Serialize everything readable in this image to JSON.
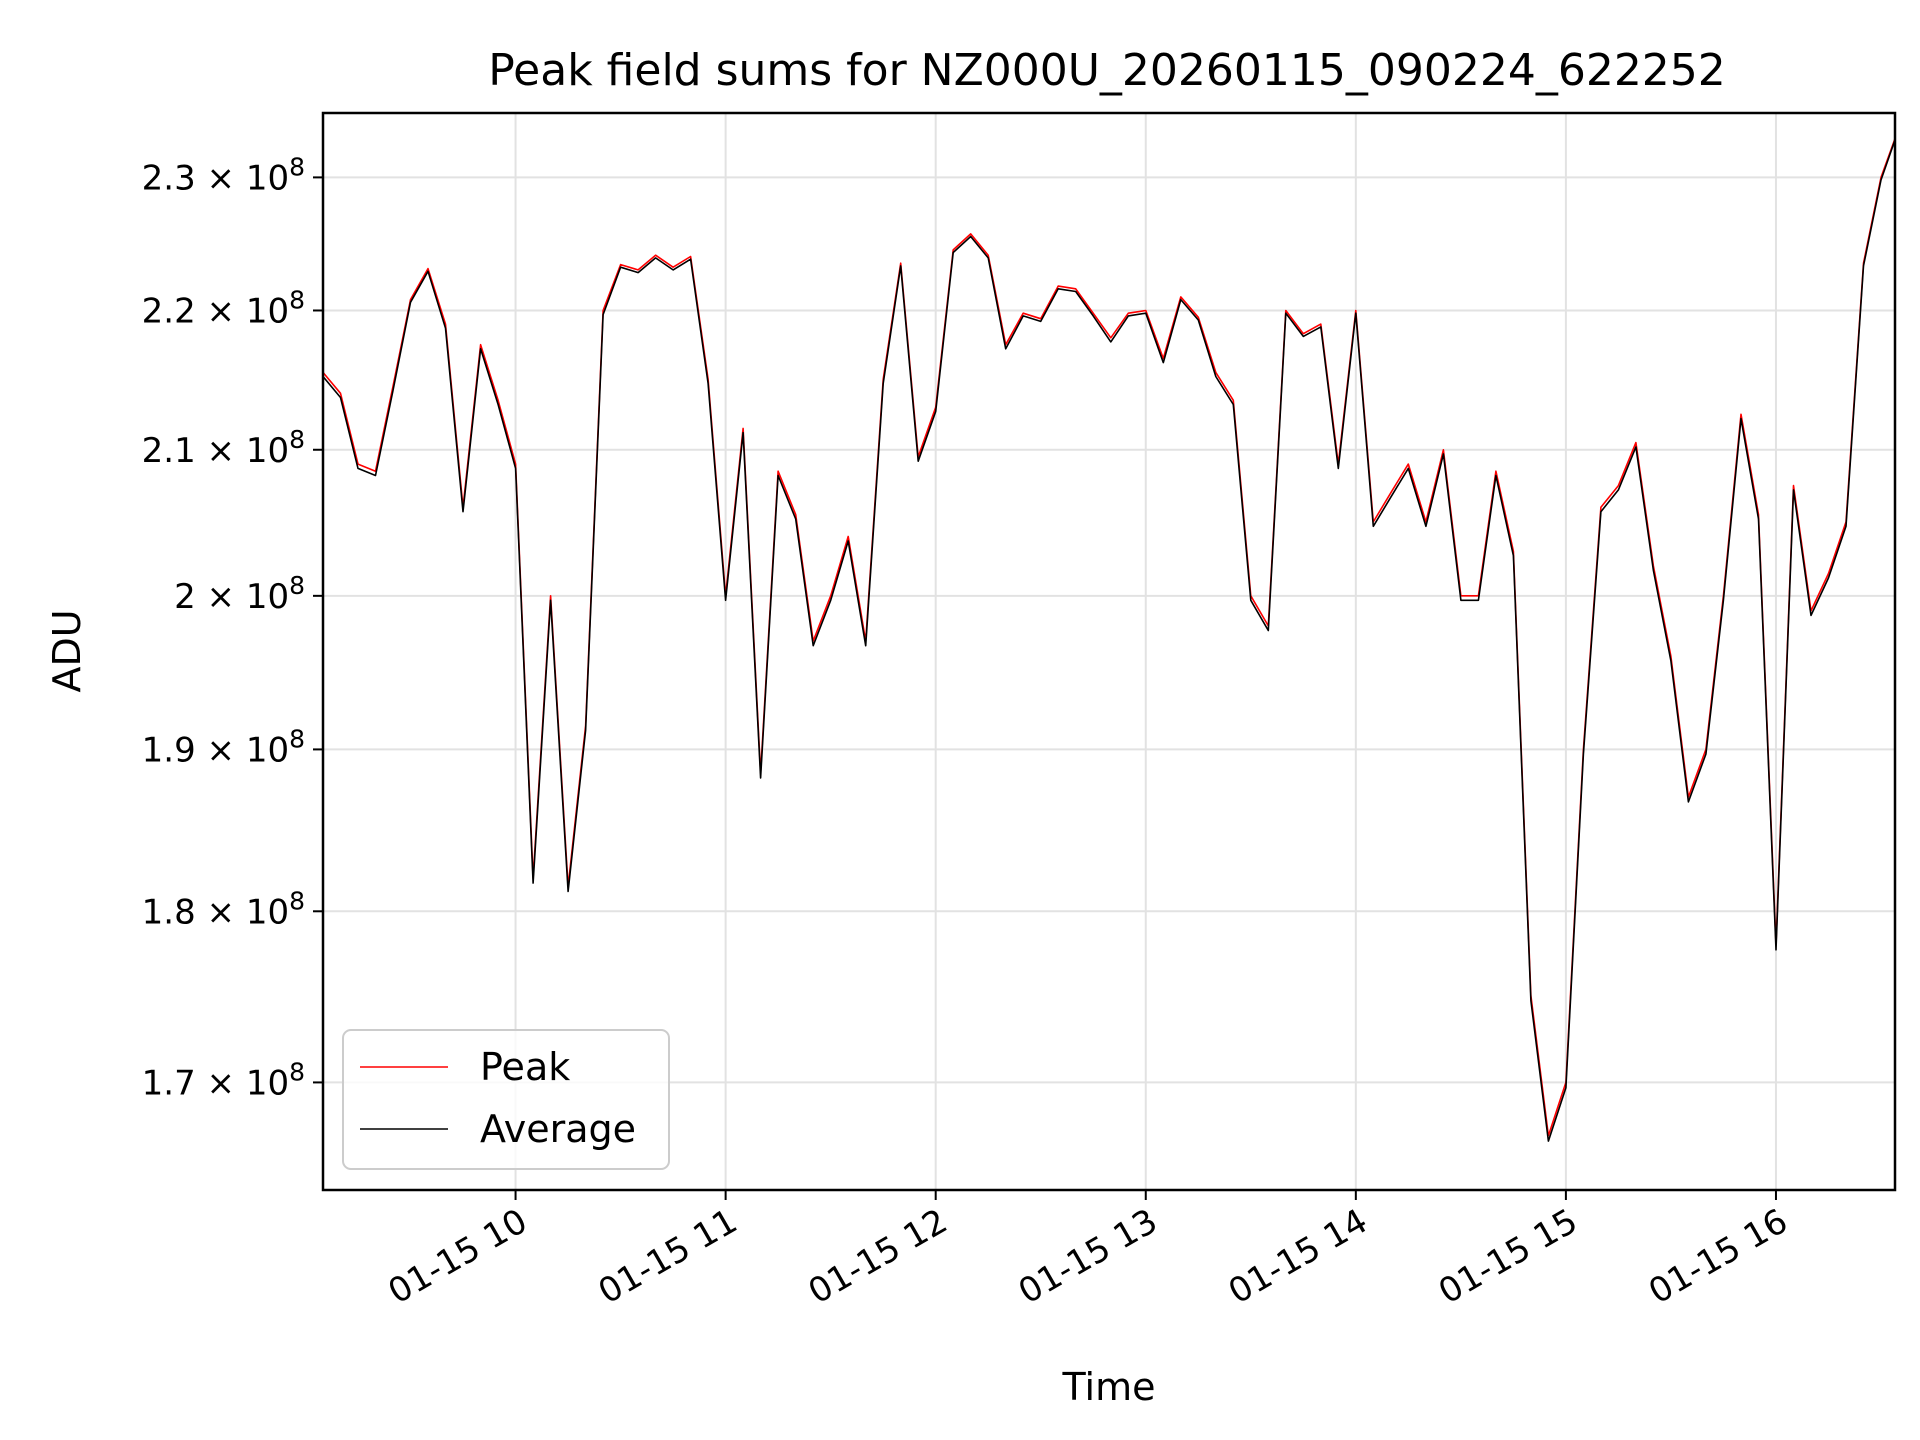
{
  "chart_data": {
    "type": "line",
    "title": "Peak field sums for NZ000U_20260115_090224_622252",
    "xlabel": "Time",
    "ylabel": "ADU",
    "x_range": [
      "2026-01-15 09:05",
      "2026-01-15 16:34"
    ],
    "ylim": [
      164000000,
      235000000
    ],
    "y_scale": "log",
    "grid": true,
    "legend_position": "lower-left",
    "x_ticks": [
      {
        "value": "2026-01-15 10:00",
        "label": "01-15 10"
      },
      {
        "value": "2026-01-15 11:00",
        "label": "01-15 11"
      },
      {
        "value": "2026-01-15 12:00",
        "label": "01-15 12"
      },
      {
        "value": "2026-01-15 13:00",
        "label": "01-15 13"
      },
      {
        "value": "2026-01-15 14:00",
        "label": "01-15 14"
      },
      {
        "value": "2026-01-15 15:00",
        "label": "01-15 15"
      },
      {
        "value": "2026-01-15 16:00",
        "label": "01-15 16"
      }
    ],
    "y_ticks": [
      {
        "value": 170000000,
        "mantissa": "1.7",
        "exponent": "8"
      },
      {
        "value": 180000000,
        "mantissa": "1.8",
        "exponent": "8"
      },
      {
        "value": 190000000,
        "mantissa": "1.9",
        "exponent": "8"
      },
      {
        "value": 200000000,
        "mantissa": "2",
        "exponent": "8"
      },
      {
        "value": 210000000,
        "mantissa": "2.1",
        "exponent": "8"
      },
      {
        "value": 220000000,
        "mantissa": "2.2",
        "exponent": "8"
      },
      {
        "value": 230000000,
        "mantissa": "2.3",
        "exponent": "8"
      }
    ],
    "times": [
      "09:05",
      "09:10",
      "09:15",
      "09:20",
      "09:25",
      "09:30",
      "09:35",
      "09:40",
      "09:45",
      "09:50",
      "09:55",
      "10:00",
      "10:05",
      "10:10",
      "10:15",
      "10:20",
      "10:25",
      "10:30",
      "10:35",
      "10:40",
      "10:45",
      "10:50",
      "10:55",
      "11:00",
      "11:05",
      "11:10",
      "11:15",
      "11:20",
      "11:25",
      "11:30",
      "11:35",
      "11:40",
      "11:45",
      "11:50",
      "11:55",
      "12:00",
      "12:05",
      "12:10",
      "12:15",
      "12:20",
      "12:25",
      "12:30",
      "12:35",
      "12:40",
      "12:45",
      "12:50",
      "12:55",
      "13:00",
      "13:05",
      "13:10",
      "13:15",
      "13:20",
      "13:25",
      "13:30",
      "13:35",
      "13:40",
      "13:45",
      "13:50",
      "13:55",
      "14:00",
      "14:05",
      "14:10",
      "14:15",
      "14:20",
      "14:25",
      "14:30",
      "14:35",
      "14:40",
      "14:45",
      "14:50",
      "14:55",
      "15:00",
      "15:05",
      "15:10",
      "15:15",
      "15:20",
      "15:25",
      "15:30",
      "15:35",
      "15:40",
      "15:45",
      "15:50",
      "15:55",
      "16:00",
      "16:05",
      "16:10",
      "16:15",
      "16:20",
      "16:25",
      "16:30",
      "16:34"
    ],
    "series": [
      {
        "name": "Peak",
        "color": "#ff0000",
        "values": [
          215500000,
          214000000,
          209000000,
          208500000,
          214500000,
          220800000,
          223100000,
          219000000,
          206000000,
          217500000,
          213500000,
          209000000,
          182000000,
          200000000,
          181500000,
          191500000,
          220000000,
          223400000,
          223000000,
          224100000,
          223200000,
          224000000,
          215000000,
          200000000,
          211500000,
          188500000,
          208500000,
          205500000,
          197000000,
          200000000,
          204000000,
          197000000,
          215000000,
          223500000,
          209500000,
          213000000,
          224500000,
          225700000,
          224100000,
          217500000,
          219800000,
          219400000,
          221800000,
          221600000,
          219800000,
          218000000,
          219800000,
          220000000,
          216500000,
          221000000,
          219500000,
          215500000,
          213500000,
          200000000,
          198000000,
          220000000,
          218300000,
          219000000,
          209000000,
          220000000,
          205000000,
          207000000,
          209000000,
          205000000,
          210000000,
          200000000,
          200000000,
          208500000,
          203000000,
          175000000,
          167000000,
          170000000,
          190000000,
          206000000,
          207500000,
          210500000,
          202000000,
          196000000,
          187000000,
          190000000,
          200000000,
          212500000,
          205500000,
          178000000,
          207500000,
          199000000,
          201500000,
          205000000,
          223500000,
          230000000,
          233000000
        ]
      },
      {
        "name": "Average",
        "color": "#000000",
        "values": [
          215200000,
          213700000,
          208700000,
          208200000,
          214200000,
          220600000,
          222900000,
          218700000,
          205700000,
          217200000,
          213200000,
          208700000,
          181700000,
          199700000,
          181200000,
          191200000,
          219700000,
          223200000,
          222800000,
          223900000,
          223000000,
          223800000,
          214700000,
          199700000,
          211200000,
          188200000,
          208200000,
          205200000,
          196700000,
          199700000,
          203700000,
          196700000,
          214700000,
          223300000,
          209200000,
          212700000,
          224300000,
          225500000,
          223900000,
          217200000,
          219600000,
          219200000,
          221600000,
          221400000,
          219600000,
          217700000,
          219600000,
          219800000,
          216200000,
          220800000,
          219300000,
          215200000,
          213200000,
          199700000,
          197700000,
          219800000,
          218100000,
          218800000,
          208700000,
          219800000,
          204700000,
          206700000,
          208700000,
          204700000,
          209700000,
          199700000,
          199700000,
          208200000,
          202700000,
          174700000,
          166700000,
          169700000,
          189700000,
          205700000,
          207200000,
          210200000,
          201700000,
          195700000,
          186700000,
          189700000,
          199700000,
          212200000,
          205200000,
          177700000,
          207200000,
          198700000,
          201200000,
          204700000,
          223300000,
          229800000,
          232900000
        ]
      }
    ]
  }
}
